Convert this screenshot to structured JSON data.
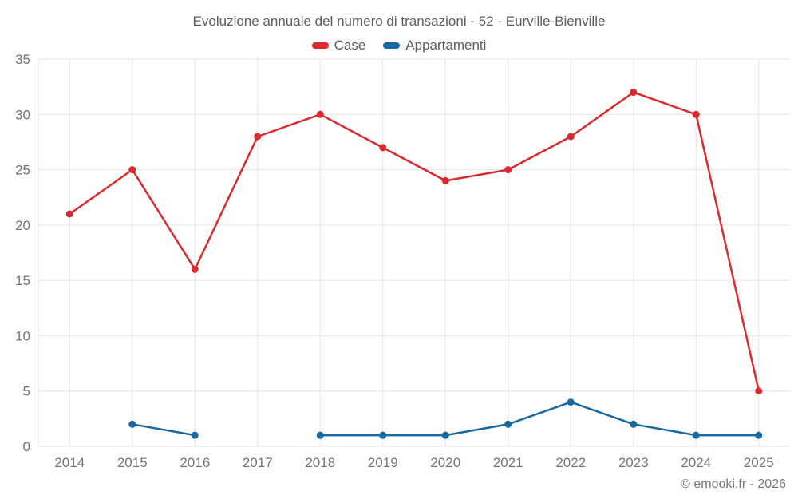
{
  "header": {
    "title": "Evoluzione annuale del numero di transazioni - 52 - Eurville-Bienville"
  },
  "legend": {
    "items": [
      {
        "label": "Case",
        "color": "#d92b2f"
      },
      {
        "label": "Appartamenti",
        "color": "#17699f"
      }
    ]
  },
  "footer": {
    "credit": "© emooki.fr - 2026"
  },
  "colors": {
    "background": "#ffffff",
    "grid": "#e6e6e6",
    "axis_text": "#757575",
    "title_text": "#5d5d5d",
    "case_red": "#d92b2f",
    "appartamenti_blue": "#17699f"
  },
  "chart_data": {
    "type": "line",
    "title": "Evoluzione annuale del numero di transazioni - 52 - Eurville-Bienville",
    "categories": [
      "2014",
      "2015",
      "2016",
      "2017",
      "2018",
      "2019",
      "2020",
      "2021",
      "2022",
      "2023",
      "2024",
      "2025"
    ],
    "series": [
      {
        "name": "Case",
        "color": "#d92b2f",
        "values": [
          21,
          25,
          16,
          28,
          30,
          27,
          24,
          25,
          28,
          32,
          30,
          5
        ]
      },
      {
        "name": "Appartamenti",
        "color": "#17699f",
        "values": [
          null,
          2,
          1,
          null,
          1,
          1,
          1,
          2,
          4,
          2,
          1,
          1
        ]
      }
    ],
    "xlabel": "",
    "ylabel": "",
    "ylim": [
      0,
      35
    ],
    "ytick_step": 5,
    "grid": true,
    "legend_position": "top"
  }
}
